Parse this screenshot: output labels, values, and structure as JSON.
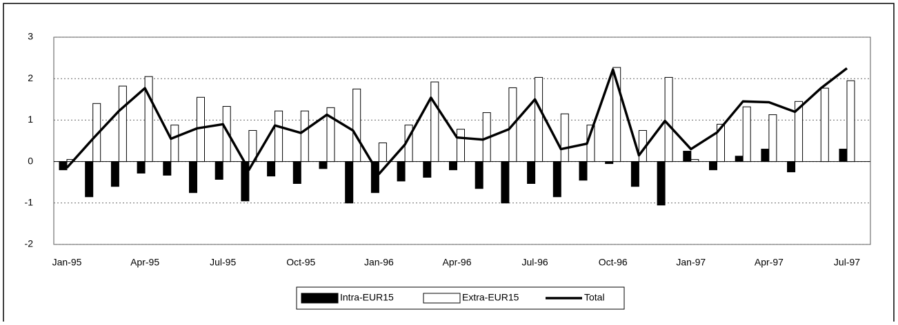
{
  "chart_data": {
    "type": "bar_line",
    "categories": [
      "Jan-95",
      null,
      null,
      "Apr-95",
      null,
      null,
      "Jul-95",
      null,
      null,
      "Oct-95",
      null,
      null,
      "Jan-96",
      null,
      null,
      "Apr-96",
      null,
      null,
      "Jul-96",
      null,
      null,
      "Oct-96",
      null,
      null,
      "Jan-97",
      null,
      null,
      "Apr-97",
      null,
      null,
      "Jul-97"
    ],
    "series": [
      {
        "name": "Intra-EUR15",
        "color": "#000000",
        "kind": "bar",
        "values": [
          -0.2,
          -0.85,
          -0.6,
          -0.28,
          -0.33,
          -0.75,
          -0.43,
          -0.95,
          -0.35,
          -0.53,
          -0.17,
          -1.0,
          -0.75,
          -0.47,
          -0.38,
          -0.2,
          -0.65,
          -1.0,
          -0.53,
          -0.85,
          -0.45,
          -0.05,
          -0.6,
          -1.05,
          0.25,
          -0.2,
          0.13,
          0.3,
          -0.25,
          0,
          0.3
        ]
      },
      {
        "name": "Extra-EUR15",
        "color": "#ffffff",
        "kind": "bar",
        "values": [
          0.05,
          1.4,
          1.82,
          2.05,
          0.88,
          1.55,
          1.33,
          0.75,
          1.22,
          1.22,
          1.3,
          1.75,
          0.45,
          0.88,
          1.92,
          0.78,
          1.18,
          1.78,
          2.03,
          1.15,
          0.88,
          2.27,
          0.75,
          2.03,
          0.05,
          0.9,
          1.32,
          1.13,
          1.45,
          1.77,
          1.95
        ]
      },
      {
        "name": "Total",
        "color": "#000000",
        "kind": "line",
        "values": [
          -0.15,
          0.55,
          1.22,
          1.77,
          0.55,
          0.8,
          0.9,
          -0.2,
          0.87,
          0.69,
          1.13,
          0.75,
          -0.3,
          0.41,
          1.54,
          0.58,
          0.53,
          0.78,
          1.5,
          0.3,
          0.43,
          2.22,
          0.15,
          0.98,
          0.3,
          0.7,
          1.45,
          1.43,
          1.2,
          1.77,
          2.25
        ]
      }
    ],
    "ylim": [
      -2,
      3
    ],
    "yticks": [
      -2,
      -1,
      0,
      1,
      2,
      3
    ],
    "grid": true,
    "legend": "bottom"
  }
}
